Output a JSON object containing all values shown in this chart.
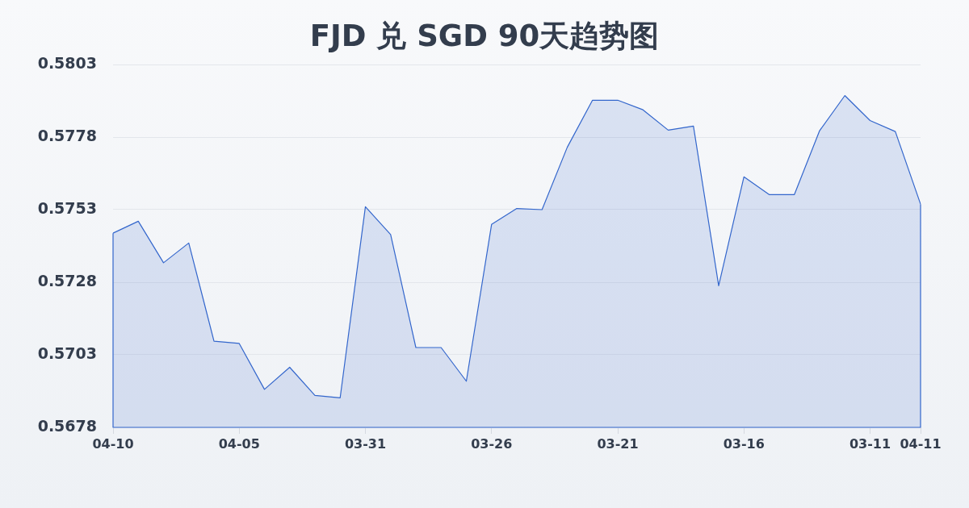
{
  "chart_data": {
    "type": "area",
    "title": "FJD 兑 SGD 90天趋势图",
    "categories": [
      "04-10",
      null,
      null,
      null,
      null,
      "04-05",
      null,
      null,
      null,
      null,
      "03-31",
      null,
      null,
      null,
      null,
      "03-26",
      null,
      null,
      null,
      null,
      "03-21",
      null,
      null,
      null,
      null,
      "03-16",
      null,
      null,
      null,
      null,
      "03-11",
      null,
      "04-11"
    ],
    "values": [
      0.57449,
      0.5749,
      0.57347,
      0.57415,
      0.57077,
      0.57069,
      0.56911,
      0.56987,
      0.5689,
      0.56882,
      0.5754,
      0.57444,
      0.57055,
      0.57055,
      0.56939,
      0.57479,
      0.57534,
      0.5753,
      0.57745,
      0.57907,
      0.57907,
      0.57874,
      0.57804,
      0.57818,
      0.57268,
      0.57643,
      0.57582,
      0.57582,
      0.57802,
      0.57923,
      0.57837,
      0.57799,
      0.57549
    ],
    "color": "#3366cc",
    "ylim": [
      0.5678,
      0.5803
    ],
    "yticks": [
      0.5678,
      0.5703,
      0.5728,
      0.5753,
      0.5778,
      0.5803
    ],
    "grid": "y"
  }
}
